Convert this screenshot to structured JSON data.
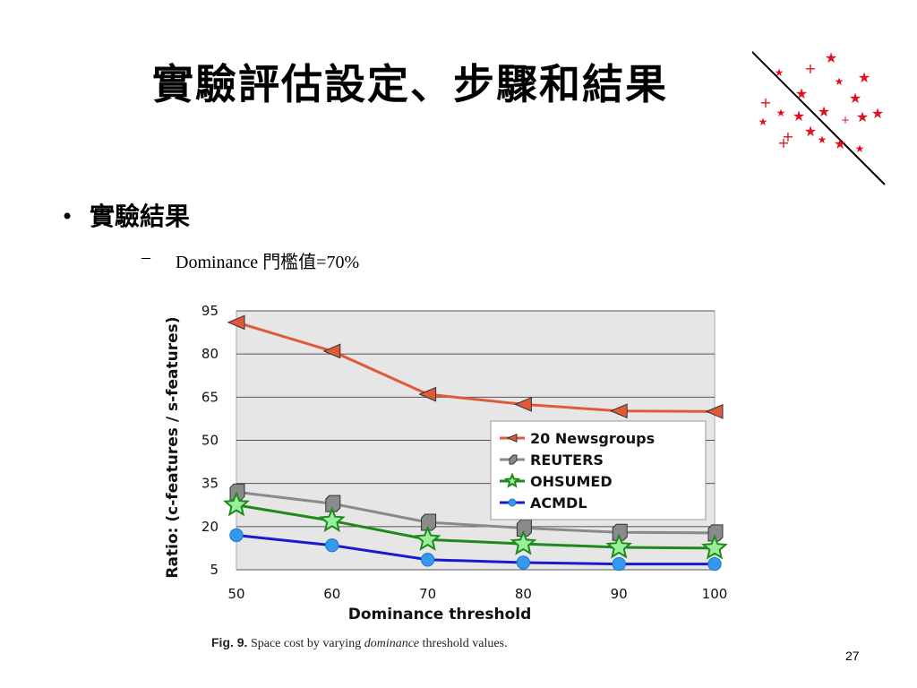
{
  "slide": {
    "title": "實驗評估設定、步驟和結果",
    "bullet": "實驗結果",
    "sub_bullet": "Dominance 門檻值=70%",
    "page_number": "27"
  },
  "caption": {
    "fig_label": "Fig. 9.",
    "text_before": "Space cost by varying ",
    "italic": "dominance",
    "text_after": " threshold values."
  },
  "chart_data": {
    "type": "line",
    "xlabel": "Dominance threshold",
    "ylabel": "Ratio: (c-features / s-features)",
    "x": [
      50,
      60,
      70,
      80,
      90,
      100
    ],
    "xlim": [
      50,
      100
    ],
    "ylim": [
      5,
      95
    ],
    "yticks": [
      5,
      20,
      35,
      50,
      65,
      80,
      95
    ],
    "xticks": [
      50,
      60,
      70,
      80,
      90,
      100
    ],
    "grid": "horizontal",
    "legend_position": "center-right",
    "series": [
      {
        "name": "20 Newsgroups",
        "values": [
          91,
          81,
          66,
          62.5,
          60.2,
          60
        ],
        "color": "#e05a3a",
        "marker": "triangle-left"
      },
      {
        "name": "REUTERS",
        "values": [
          32,
          28,
          21.5,
          19.5,
          18,
          17.8
        ],
        "color": "#8a8a8a",
        "marker": "cube"
      },
      {
        "name": "OHSUMED",
        "values": [
          27.5,
          22,
          15.5,
          14,
          12.8,
          12.5
        ],
        "color": "#1e8a1e",
        "marker": "star"
      },
      {
        "name": "ACMDL",
        "values": [
          17,
          13.5,
          8.5,
          7.5,
          7,
          7
        ],
        "color": "#1a1acc",
        "marker": "circle"
      }
    ]
  },
  "colors": {
    "plot_background": "#e6e6e6",
    "gridline": "#555555",
    "decoration_star": "#e01020"
  }
}
